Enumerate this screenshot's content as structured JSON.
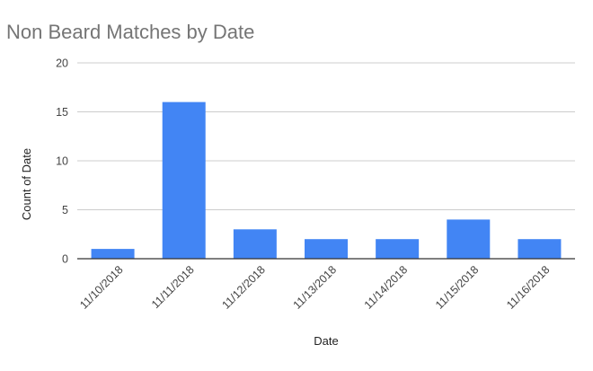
{
  "chart_data": {
    "type": "bar",
    "title": "Non Beard Matches by Date",
    "xlabel": "Date",
    "ylabel": "Count of Date",
    "categories": [
      "11/10/2018",
      "11/11/2018",
      "11/12/2018",
      "11/13/2018",
      "11/14/2018",
      "11/15/2018",
      "11/16/2018"
    ],
    "values": [
      1,
      16,
      3,
      2,
      2,
      4,
      2
    ],
    "ylim": [
      0,
      20
    ],
    "yticks": [
      0,
      5,
      10,
      15,
      20
    ],
    "grid": true,
    "legend": "none",
    "bar_color": "#4285F4",
    "grid_color": "#cccccc",
    "axis_color": "#333333"
  }
}
